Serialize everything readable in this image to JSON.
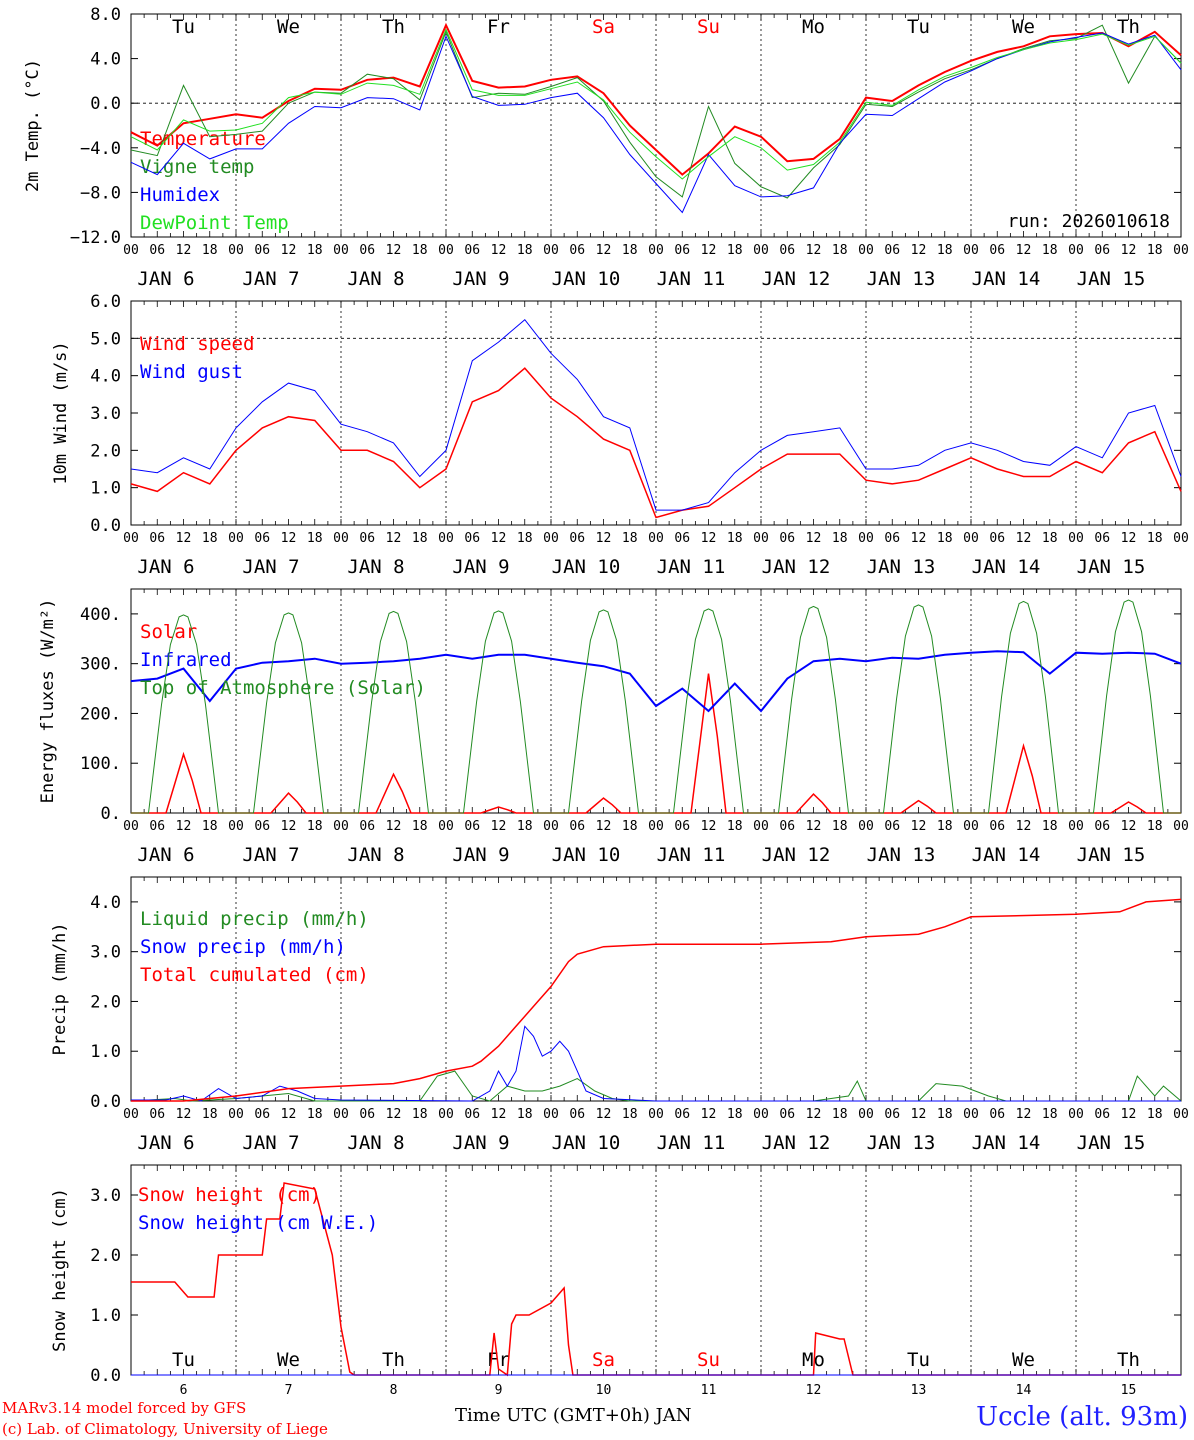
{
  "station": "Uccle (alt. 93m)",
  "run_label": "run: 2026010618",
  "footer": {
    "model_line": "MARv3.14 model forced by GFS",
    "credit_line": "(c) Lab. of Climatology, University of Liege",
    "time_axis_title": "Time UTC (GMT+0h) JAN"
  },
  "time": {
    "hour_ticks": [
      "00",
      "06",
      "12",
      "18"
    ],
    "final_tick": "00",
    "date_labels": [
      "JAN  6",
      "JAN  7",
      "JAN  8",
      "JAN  9",
      "JAN 10",
      "JAN 11",
      "JAN 12",
      "JAN 13",
      "JAN 14",
      "JAN 15"
    ],
    "weekday_labels": [
      "Tu",
      "We",
      "Th",
      "Fr",
      "Sa",
      "Su",
      "Mo",
      "Tu",
      "We",
      "Th"
    ],
    "weekday_colors": [
      "#000000",
      "#000000",
      "#000000",
      "#000000",
      "#ff0000",
      "#ff0000",
      "#000000",
      "#000000",
      "#000000",
      "#000000"
    ],
    "day_numbers": [
      "6",
      "7",
      "8",
      "9",
      "10",
      "11",
      "12",
      "13",
      "14",
      "15"
    ]
  },
  "colors": {
    "red": "#ff0000",
    "green": "#228b22",
    "blue": "#0000ff",
    "lightgreen": "#22e022"
  },
  "chart_data": [
    {
      "type": "line",
      "ylabel": "2m Temp. (°C)",
      "ylim": [
        -12,
        8
      ],
      "yticks": [
        8,
        4,
        0,
        -4,
        -8,
        -12
      ],
      "ytick_labels": [
        "8.0",
        "4.0",
        "0.0",
        "−4.0",
        "−8.0",
        "−12.0"
      ],
      "reference_line": 0,
      "x_units": "hours since JAN 6 00 UTC",
      "series": [
        {
          "name": "Temperature",
          "color": "#ff0000",
          "width": 2,
          "x": [
            0,
            6,
            12,
            18,
            24,
            30,
            36,
            42,
            48,
            54,
            60,
            66,
            72,
            78,
            84,
            90,
            96,
            102,
            108,
            114,
            120,
            126,
            132,
            138,
            144,
            150,
            156,
            162,
            168,
            174,
            180,
            186,
            192,
            198,
            204,
            210,
            216,
            222,
            228,
            234,
            240
          ],
          "y": [
            -2.6,
            -3.8,
            -1.8,
            -1.4,
            -1.0,
            -1.3,
            0.2,
            1.3,
            1.2,
            2.1,
            2.3,
            1.5,
            7.0,
            2.0,
            1.4,
            1.5,
            2.1,
            2.4,
            0.9,
            -2.0,
            -4.2,
            -6.4,
            -4.5,
            -2.1,
            -3.0,
            -5.2,
            -5.0,
            -3.2,
            0.5,
            0.2,
            1.6,
            2.8,
            3.8,
            4.6,
            5.1,
            6.0,
            6.2,
            6.3,
            5.1,
            6.4,
            4.3
          ]
        },
        {
          "name": "Vigne temp",
          "color": "#228b22",
          "width": 1,
          "x": [
            0,
            6,
            12,
            18,
            24,
            30,
            36,
            42,
            48,
            54,
            60,
            66,
            72,
            78,
            84,
            90,
            96,
            102,
            108,
            114,
            120,
            126,
            132,
            138,
            144,
            150,
            156,
            162,
            168,
            174,
            180,
            186,
            192,
            198,
            204,
            210,
            216,
            222,
            228,
            234,
            240
          ],
          "y": [
            -4.2,
            -4.7,
            1.6,
            -3.0,
            -2.8,
            -2.5,
            0.0,
            1.0,
            0.9,
            2.6,
            2.2,
            0.3,
            6.4,
            0.5,
            0.9,
            0.8,
            1.5,
            2.3,
            0.2,
            -3.5,
            -6.6,
            -8.4,
            -0.3,
            -5.4,
            -7.5,
            -8.5,
            -5.8,
            -3.7,
            -0.1,
            -0.3,
            1.0,
            2.2,
            3.0,
            4.0,
            4.9,
            5.6,
            5.8,
            7.0,
            1.8,
            6.0,
            3.6
          ]
        },
        {
          "name": "Humidex",
          "color": "#0000ff",
          "width": 1,
          "x": [
            0,
            6,
            12,
            18,
            24,
            30,
            36,
            42,
            48,
            54,
            60,
            66,
            72,
            78,
            84,
            90,
            96,
            102,
            108,
            114,
            120,
            126,
            132,
            138,
            144,
            150,
            156,
            162,
            168,
            174,
            180,
            186,
            192,
            198,
            204,
            210,
            216,
            222,
            228,
            234,
            240
          ],
          "y": [
            -5.3,
            -6.4,
            -3.6,
            -5.0,
            -4.1,
            -4.1,
            -1.8,
            -0.3,
            -0.4,
            0.5,
            0.4,
            -0.6,
            6.0,
            0.6,
            -0.2,
            -0.1,
            0.5,
            0.9,
            -1.3,
            -4.6,
            -7.2,
            -9.8,
            -4.6,
            -7.4,
            -8.4,
            -8.3,
            -7.6,
            -3.6,
            -1.0,
            -1.1,
            0.4,
            1.9,
            2.9,
            4.0,
            4.8,
            5.5,
            5.9,
            6.3,
            5.3,
            6.1,
            3.0
          ]
        },
        {
          "name": "DewPoint Temp",
          "color": "#22e022",
          "width": 1,
          "x": [
            0,
            6,
            12,
            18,
            24,
            30,
            36,
            42,
            48,
            54,
            60,
            66,
            72,
            78,
            84,
            90,
            96,
            102,
            108,
            114,
            120,
            126,
            132,
            138,
            144,
            150,
            156,
            162,
            168,
            174,
            180,
            186,
            192,
            198,
            204,
            210,
            216,
            222,
            228,
            234,
            240
          ],
          "y": [
            -3.0,
            -4.2,
            -1.5,
            -2.5,
            -2.4,
            -1.8,
            0.5,
            1.0,
            0.8,
            1.8,
            1.6,
            0.8,
            6.6,
            1.2,
            0.7,
            0.7,
            1.3,
            1.9,
            0.3,
            -2.6,
            -4.8,
            -6.8,
            -4.8,
            -3.0,
            -4.0,
            -6.0,
            -5.5,
            -3.5,
            0.1,
            -0.2,
            1.2,
            2.4,
            3.2,
            4.1,
            4.8,
            5.4,
            5.7,
            6.2,
            5.2,
            6.0,
            3.6
          ]
        }
      ]
    },
    {
      "type": "line",
      "ylabel": "10m Wind (m/s)",
      "ylim": [
        0,
        6
      ],
      "yticks": [
        0,
        1,
        2,
        3,
        4,
        5,
        6
      ],
      "ytick_labels": [
        "0.0",
        "1.0",
        "2.0",
        "3.0",
        "4.0",
        "5.0",
        "6.0"
      ],
      "reference_line": 5,
      "x_units": "hours since JAN 6 00 UTC",
      "series": [
        {
          "name": "Wind speed",
          "color": "#ff0000",
          "width": 1.5,
          "x": [
            0,
            6,
            12,
            18,
            24,
            30,
            36,
            42,
            48,
            54,
            60,
            66,
            72,
            78,
            84,
            90,
            96,
            102,
            108,
            114,
            120,
            126,
            132,
            138,
            144,
            150,
            156,
            162,
            168,
            174,
            180,
            186,
            192,
            198,
            204,
            210,
            216,
            222,
            228,
            234,
            240
          ],
          "y": [
            1.1,
            0.9,
            1.4,
            1.1,
            2.0,
            2.6,
            2.9,
            2.8,
            2.0,
            2.0,
            1.7,
            1.0,
            1.5,
            3.3,
            3.6,
            4.2,
            3.4,
            2.9,
            2.3,
            2.0,
            0.2,
            0.4,
            0.5,
            1.0,
            1.5,
            1.9,
            1.9,
            1.9,
            1.2,
            1.1,
            1.2,
            1.5,
            1.8,
            1.5,
            1.3,
            1.3,
            1.7,
            1.4,
            2.2,
            2.5,
            0.9
          ]
        },
        {
          "name": "Wind gust",
          "color": "#0000ff",
          "width": 1,
          "x": [
            0,
            6,
            12,
            18,
            24,
            30,
            36,
            42,
            48,
            54,
            60,
            66,
            72,
            78,
            84,
            90,
            96,
            102,
            108,
            114,
            120,
            126,
            132,
            138,
            144,
            150,
            156,
            162,
            168,
            174,
            180,
            186,
            192,
            198,
            204,
            210,
            216,
            222,
            228,
            234,
            240
          ],
          "y": [
            1.5,
            1.4,
            1.8,
            1.5,
            2.6,
            3.3,
            3.8,
            3.6,
            2.7,
            2.5,
            2.2,
            1.3,
            2.0,
            4.4,
            4.9,
            5.5,
            4.6,
            3.9,
            2.9,
            2.6,
            0.4,
            0.4,
            0.6,
            1.4,
            2.0,
            2.4,
            2.5,
            2.6,
            1.5,
            1.5,
            1.6,
            2.0,
            2.2,
            2.0,
            1.7,
            1.6,
            2.1,
            1.8,
            3.0,
            3.2,
            1.3
          ]
        }
      ]
    },
    {
      "type": "line",
      "ylabel": "Energy fluxes (W/m²)",
      "ylim": [
        0,
        450
      ],
      "yticks": [
        0,
        100,
        200,
        300,
        400
      ],
      "ytick_labels": [
        "0.",
        "100.",
        "200.",
        "300.",
        "400."
      ],
      "x_units": "hours since JAN 6 00 UTC",
      "daily_peaks_x": [
        12,
        36,
        60,
        84,
        108,
        132,
        156,
        180,
        204,
        228
      ],
      "series": [
        {
          "name": "Solar",
          "color": "#ff0000",
          "width": 1.5,
          "daily_peaks": [
            118,
            40,
            78,
            12,
            30,
            280,
            38,
            25,
            135,
            22
          ]
        },
        {
          "name": "Infrared",
          "color": "#0000ff",
          "width": 2,
          "x": [
            0,
            6,
            12,
            18,
            24,
            30,
            36,
            42,
            48,
            54,
            60,
            66,
            72,
            78,
            84,
            90,
            96,
            102,
            108,
            114,
            120,
            126,
            132,
            138,
            144,
            150,
            156,
            162,
            168,
            174,
            180,
            186,
            192,
            198,
            204,
            210,
            216,
            222,
            228,
            234,
            240
          ],
          "y": [
            265,
            270,
            290,
            225,
            290,
            302,
            305,
            310,
            300,
            302,
            305,
            310,
            318,
            310,
            318,
            318,
            310,
            302,
            295,
            280,
            215,
            250,
            205,
            260,
            205,
            270,
            305,
            310,
            305,
            312,
            310,
            318,
            322,
            325,
            323,
            280,
            322,
            320,
            322,
            320,
            300
          ]
        },
        {
          "name": "Top of Atmosphere (Solar)",
          "color": "#228b22",
          "width": 1,
          "daily_peaks": [
            398,
            402,
            405,
            406,
            408,
            410,
            415,
            418,
            425,
            428
          ]
        }
      ]
    },
    {
      "type": "line",
      "ylabel": "Precip (mm/h)",
      "ylim": [
        0,
        4.5
      ],
      "yticks": [
        0,
        1,
        2,
        3,
        4
      ],
      "ytick_labels": [
        "0.0",
        "1.0",
        "2.0",
        "3.0",
        "4.0"
      ],
      "x_units": "hours since JAN 6 00 UTC",
      "series": [
        {
          "name": "Liquid precip (mm/h)",
          "color": "#228b22",
          "width": 1,
          "x": [
            0,
            10,
            14,
            24,
            30,
            36,
            42,
            48,
            60,
            66,
            70,
            74,
            78,
            82,
            86,
            90,
            94,
            98,
            102,
            106,
            110,
            114,
            120,
            156,
            164,
            166,
            168,
            180,
            184,
            190,
            196,
            200,
            228,
            230,
            234,
            236,
            240
          ],
          "y": [
            0,
            0.05,
            0,
            0.05,
            0.1,
            0.15,
            0,
            0,
            0,
            0,
            0.5,
            0.6,
            0.1,
            0,
            0.3,
            0.2,
            0.2,
            0.3,
            0.45,
            0.2,
            0.05,
            0,
            0,
            0,
            0.1,
            0.4,
            0,
            0,
            0.35,
            0.3,
            0.1,
            0,
            0,
            0.5,
            0.1,
            0.3,
            0
          ]
        },
        {
          "name": "Snow precip (mm/h)",
          "color": "#0000ff",
          "width": 1,
          "x": [
            0,
            8,
            12,
            16,
            20,
            24,
            30,
            34,
            38,
            42,
            48,
            78,
            82,
            84,
            86,
            88,
            90,
            92,
            94,
            96,
            98,
            100,
            102,
            104,
            108,
            120,
            240
          ],
          "y": [
            0.02,
            0.02,
            0.1,
            0,
            0.25,
            0.05,
            0.1,
            0.3,
            0.2,
            0.05,
            0.02,
            0,
            0.2,
            0.6,
            0.3,
            0.6,
            1.5,
            1.3,
            0.9,
            1.0,
            1.2,
            1.0,
            0.6,
            0.2,
            0.05,
            0,
            0
          ]
        },
        {
          "name": "Total cumulated (cm)",
          "color": "#ff0000",
          "width": 1.5,
          "x": [
            0,
            12,
            24,
            36,
            48,
            60,
            66,
            72,
            78,
            80,
            84,
            88,
            92,
            96,
            100,
            102,
            108,
            120,
            144,
            160,
            168,
            180,
            186,
            192,
            216,
            226,
            232,
            240
          ],
          "y": [
            0,
            0,
            0.1,
            0.25,
            0.3,
            0.35,
            0.45,
            0.6,
            0.7,
            0.8,
            1.1,
            1.5,
            1.9,
            2.3,
            2.8,
            2.95,
            3.1,
            3.15,
            3.15,
            3.2,
            3.3,
            3.35,
            3.5,
            3.7,
            3.75,
            3.8,
            4.0,
            4.05
          ]
        }
      ]
    },
    {
      "type": "line",
      "ylabel": "Snow height (cm)",
      "ylim": [
        0,
        3.5
      ],
      "yticks": [
        0,
        1,
        2,
        3
      ],
      "ytick_labels": [
        "0.0",
        "1.0",
        "2.0",
        "3.0"
      ],
      "x_units": "hours since JAN 6 00 UTC",
      "series": [
        {
          "name": "Snow height (cm)",
          "color": "#ff0000",
          "width": 1.5,
          "x": [
            0,
            10,
            13,
            19,
            20,
            24,
            30,
            31,
            34,
            35,
            42,
            46,
            48,
            50,
            51,
            82,
            83,
            84,
            86,
            87,
            88,
            91,
            96,
            99,
            100,
            101,
            156,
            156.5,
            162,
            163,
            165,
            240
          ],
          "y": [
            1.55,
            1.55,
            1.3,
            1.3,
            2.0,
            2.0,
            2.0,
            2.6,
            2.6,
            3.2,
            3.1,
            2.0,
            0.8,
            0.05,
            0,
            0,
            0.7,
            0.1,
            0,
            0.85,
            1.0,
            1.0,
            1.2,
            1.45,
            0.5,
            0,
            0,
            0.7,
            0.6,
            0.6,
            0,
            0
          ]
        },
        {
          "name": "Snow height (cm W.E.)",
          "color": "#0000ff",
          "width": 1,
          "x": [
            0,
            240
          ],
          "y": [
            0,
            0
          ]
        }
      ]
    }
  ]
}
